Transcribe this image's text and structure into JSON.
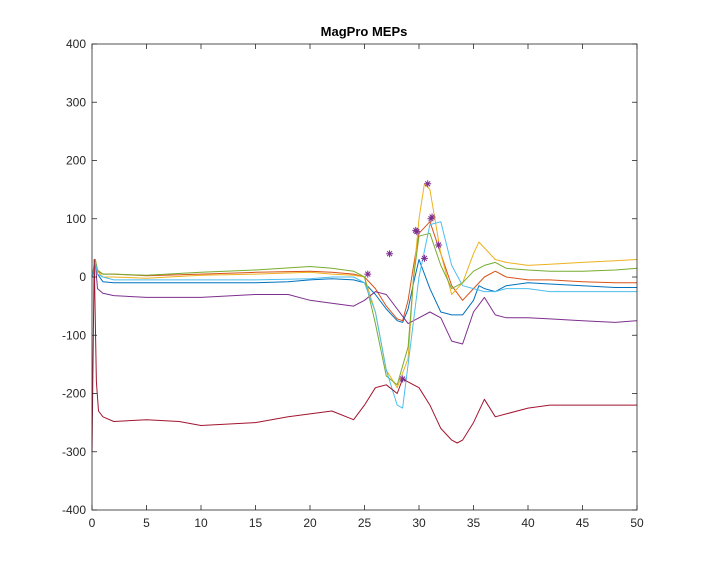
{
  "chart_data": {
    "type": "line",
    "title": "MagPro MEPs",
    "xlabel": "",
    "ylabel": "",
    "xlim": [
      0,
      50
    ],
    "ylim": [
      -400,
      400
    ],
    "xticks": [
      0,
      5,
      10,
      15,
      20,
      25,
      30,
      35,
      40,
      45,
      50
    ],
    "yticks": [
      -400,
      -300,
      -200,
      -100,
      0,
      100,
      200,
      300,
      400
    ],
    "grid": false,
    "legend": "none",
    "marker_color": "#7E2F8E",
    "series": [
      {
        "color": "#0072BD",
        "x": [
          0,
          0.3,
          0.5,
          1,
          2,
          5,
          10,
          15,
          18,
          20,
          22,
          24,
          25,
          26,
          27,
          28,
          28.5,
          29,
          29.5,
          30,
          31,
          32,
          33,
          34,
          35,
          35.5,
          36,
          37,
          38,
          40,
          42,
          45,
          48,
          50
        ],
        "y": [
          0,
          25,
          5,
          -8,
          -10,
          -10,
          -10,
          -10,
          -8,
          -5,
          -3,
          -5,
          -10,
          -30,
          -55,
          -75,
          -78,
          -55,
          -10,
          30,
          -20,
          -60,
          -65,
          -65,
          -40,
          -15,
          -20,
          -25,
          -15,
          -10,
          -12,
          -15,
          -18,
          -18
        ]
      },
      {
        "color": "#D95319",
        "x": [
          0,
          0.3,
          0.5,
          1,
          2,
          5,
          10,
          15,
          20,
          22,
          24,
          25,
          26,
          27,
          28,
          28.5,
          29,
          29.5,
          30,
          31,
          32,
          33,
          34,
          35,
          36,
          37,
          38,
          40,
          42,
          45,
          48,
          50
        ],
        "y": [
          0,
          30,
          10,
          5,
          5,
          2,
          5,
          8,
          10,
          8,
          5,
          0,
          -20,
          -50,
          -72,
          -75,
          -40,
          20,
          75,
          95,
          40,
          -15,
          -40,
          -20,
          0,
          10,
          0,
          -5,
          -5,
          -8,
          -10,
          -10
        ]
      },
      {
        "color": "#EDB120",
        "x": [
          0,
          0.3,
          0.5,
          1,
          2,
          5,
          10,
          15,
          20,
          22,
          24,
          25,
          26,
          27,
          28,
          29,
          29.5,
          30,
          30.5,
          31,
          32,
          33,
          34,
          35,
          35.5,
          36,
          37,
          38,
          40,
          42,
          45,
          48,
          50
        ],
        "y": [
          0,
          28,
          10,
          0,
          0,
          -2,
          3,
          5,
          8,
          5,
          3,
          0,
          -60,
          -160,
          -190,
          -140,
          0,
          100,
          160,
          150,
          40,
          -30,
          -10,
          40,
          60,
          50,
          30,
          25,
          20,
          22,
          25,
          28,
          30
        ]
      },
      {
        "color": "#7E2F8E",
        "x": [
          0,
          0.3,
          0.5,
          1,
          2,
          5,
          10,
          15,
          18,
          20,
          22,
          24,
          25,
          26,
          27,
          28,
          29,
          30,
          31,
          32,
          33,
          34,
          35,
          36,
          37,
          38,
          40,
          42,
          45,
          48,
          50
        ],
        "y": [
          0,
          25,
          -20,
          -28,
          -32,
          -35,
          -35,
          -30,
          -30,
          -40,
          -45,
          -50,
          -40,
          -25,
          -30,
          -55,
          -80,
          -70,
          -60,
          -70,
          -110,
          -115,
          -60,
          -35,
          -65,
          -70,
          -70,
          -72,
          -75,
          -78,
          -75
        ]
      },
      {
        "color": "#77AC30",
        "x": [
          0,
          0.3,
          0.5,
          1,
          2,
          5,
          10,
          15,
          20,
          22,
          24,
          25,
          26,
          27,
          28,
          29,
          29.5,
          30,
          31,
          32,
          33,
          34,
          35,
          36,
          37,
          38,
          40,
          42,
          45,
          48,
          50
        ],
        "y": [
          0,
          30,
          12,
          5,
          5,
          3,
          8,
          12,
          18,
          15,
          10,
          0,
          -80,
          -170,
          -185,
          -120,
          0,
          70,
          75,
          20,
          -20,
          -10,
          10,
          20,
          25,
          15,
          12,
          10,
          10,
          12,
          15
        ]
      },
      {
        "color": "#4DBEEE",
        "x": [
          0,
          0.3,
          0.5,
          1,
          2,
          5,
          10,
          15,
          20,
          22,
          24,
          25,
          26,
          27,
          28,
          28.5,
          29,
          30,
          31,
          32,
          33,
          34,
          35,
          36,
          37,
          38,
          40,
          42,
          45,
          48,
          50
        ],
        "y": [
          0,
          25,
          5,
          0,
          -5,
          -5,
          -5,
          -5,
          -3,
          0,
          0,
          -10,
          -60,
          -160,
          -220,
          -225,
          -150,
          0,
          90,
          95,
          20,
          -15,
          -20,
          -25,
          -25,
          -20,
          -20,
          -25,
          -25,
          -25,
          -25
        ]
      },
      {
        "color": "#A2142F",
        "x": [
          0,
          0.2,
          0.4,
          0.6,
          1,
          2,
          5,
          8,
          10,
          15,
          18,
          20,
          22,
          24,
          25,
          26,
          27,
          28,
          28.5,
          29,
          30,
          31,
          32,
          33,
          33.5,
          34,
          35,
          36,
          37,
          38,
          40,
          42,
          45,
          48,
          50
        ],
        "y": [
          -300,
          30,
          -180,
          -230,
          -240,
          -248,
          -245,
          -248,
          -255,
          -250,
          -240,
          -235,
          -230,
          -245,
          -220,
          -190,
          -185,
          -200,
          -175,
          -180,
          -190,
          -220,
          -260,
          -280,
          -285,
          -280,
          -250,
          -210,
          -240,
          -235,
          -225,
          -220,
          -220,
          -220,
          -220
        ]
      }
    ],
    "peak_markers": {
      "x": [
        25.3,
        27.3,
        28.5,
        29.7,
        29.8,
        30.5,
        30.8,
        31.1,
        31.2,
        31.8
      ],
      "y": [
        5,
        40,
        -175,
        80,
        78,
        32,
        160,
        100,
        103,
        55
      ]
    }
  }
}
